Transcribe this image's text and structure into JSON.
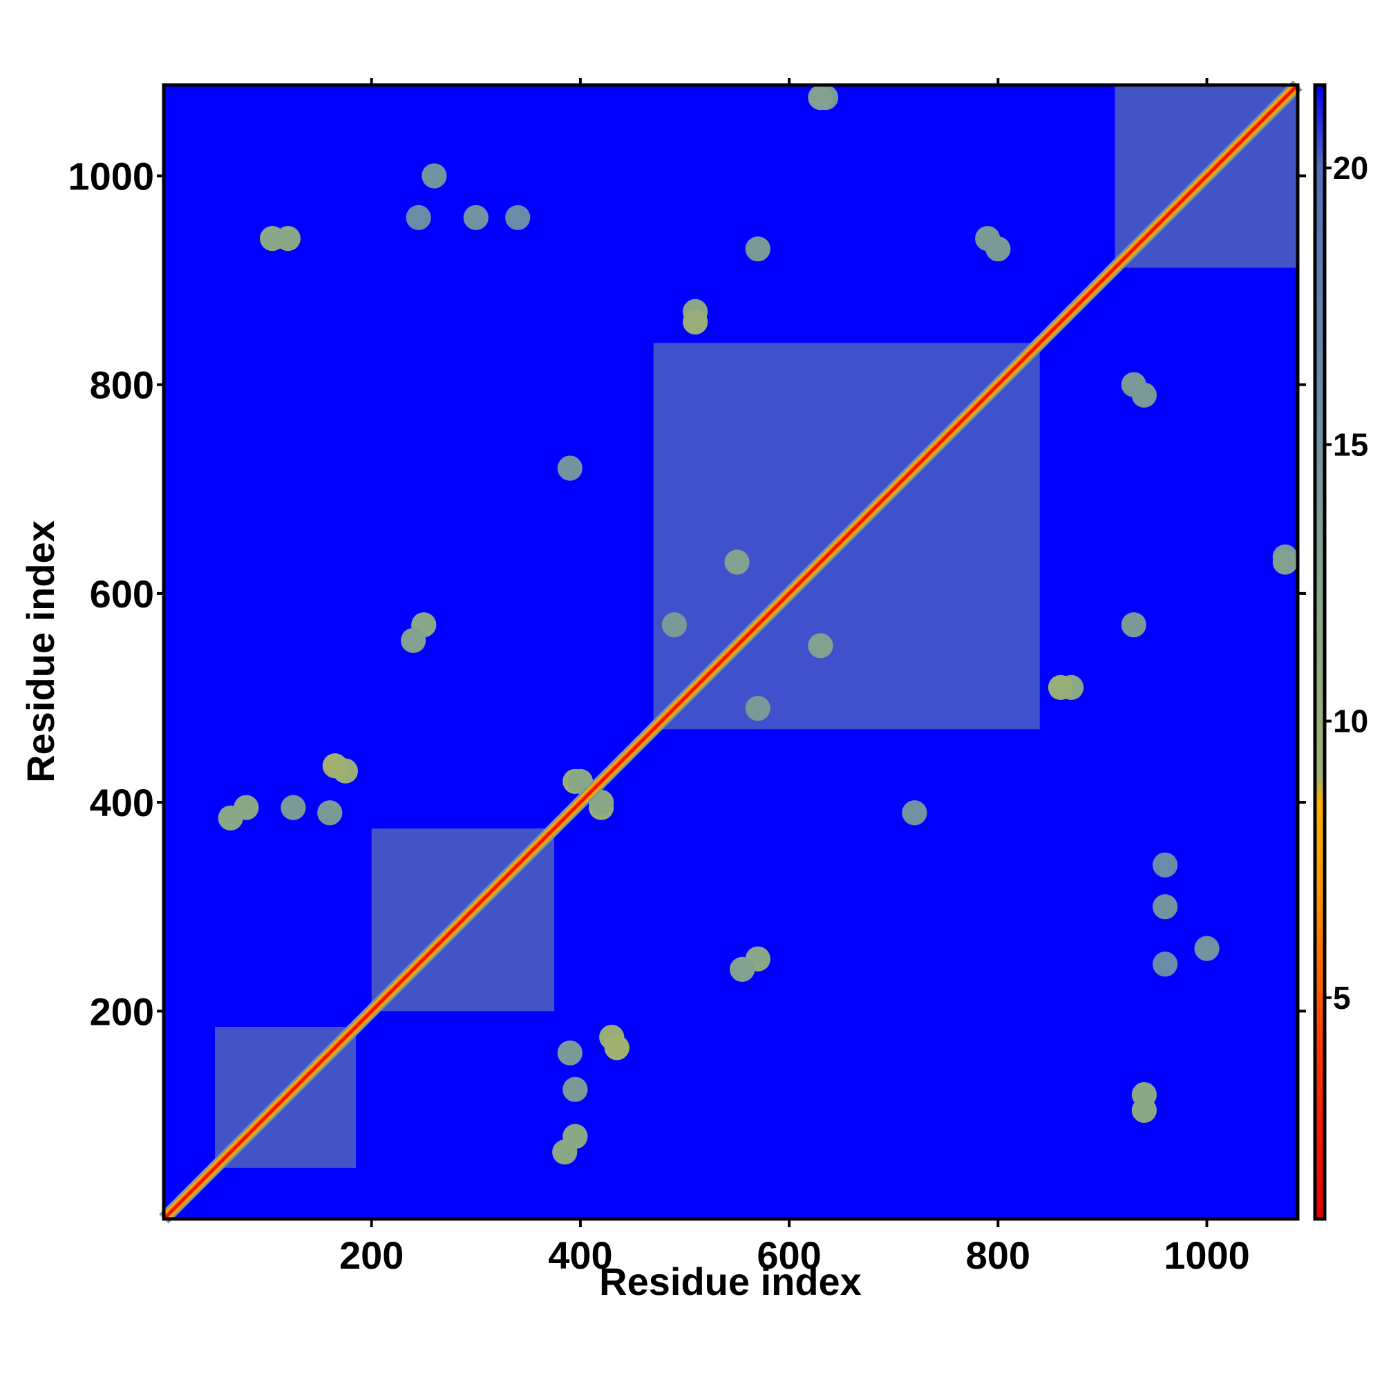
{
  "chart_data": {
    "type": "heatmap",
    "title": "",
    "xlabel": "Residue index",
    "ylabel": "Residue index",
    "xlim": [
      1,
      1087
    ],
    "ylim": [
      1,
      1087
    ],
    "x_ticks": [
      200,
      400,
      600,
      800,
      1000
    ],
    "y_ticks": [
      200,
      400,
      600,
      800,
      1000
    ],
    "x_tick_labels": [
      "200",
      "400",
      "600",
      "800",
      "1000"
    ],
    "y_tick_labels": [
      "200",
      "400",
      "600",
      "800",
      "1000"
    ],
    "grid": false,
    "legend": "none",
    "background_value": 21.5,
    "colorbar": {
      "position": "right",
      "range": [
        1,
        21.5
      ],
      "ticks": [
        5,
        10,
        15,
        20
      ],
      "tick_labels": [
        "5",
        "10",
        "15",
        "20"
      ],
      "color_stops": [
        {
          "value": 1,
          "color": "#e60000"
        },
        {
          "value": 4,
          "color": "#ff3300"
        },
        {
          "value": 7,
          "color": "#ff9900"
        },
        {
          "value": 8.5,
          "color": "#ffb000"
        },
        {
          "value": 9,
          "color": "#a0b070"
        },
        {
          "value": 12,
          "color": "#8aa888"
        },
        {
          "value": 16,
          "color": "#6a8ca8"
        },
        {
          "value": 20,
          "color": "#5070b8"
        },
        {
          "value": 21.5,
          "color": "#0000ff"
        }
      ]
    },
    "domains": [
      {
        "range": [
          50,
          185
        ],
        "value": 14
      },
      {
        "range": [
          200,
          375
        ],
        "value": 14
      },
      {
        "range": [
          470,
          840
        ],
        "value": 15
      },
      {
        "range": [
          912,
          1087
        ],
        "value": 14
      }
    ],
    "off_diagonal_contacts": [
      {
        "x": 120,
        "y": 940,
        "value": 12
      },
      {
        "x": 260,
        "y": 1000,
        "value": 15
      },
      {
        "x": 300,
        "y": 960,
        "value": 15
      },
      {
        "x": 635,
        "y": 1075,
        "value": 14
      },
      {
        "x": 510,
        "y": 870,
        "value": 12
      },
      {
        "x": 570,
        "y": 930,
        "value": 14
      },
      {
        "x": 800,
        "y": 930,
        "value": 14
      },
      {
        "x": 250,
        "y": 570,
        "value": 12
      },
      {
        "x": 390,
        "y": 720,
        "value": 15
      },
      {
        "x": 80,
        "y": 395,
        "value": 12
      },
      {
        "x": 125,
        "y": 395,
        "value": 14
      },
      {
        "x": 175,
        "y": 430,
        "value": 10
      },
      {
        "x": 395,
        "y": 420,
        "value": 10
      },
      {
        "x": 420,
        "y": 400,
        "value": 12
      },
      {
        "x": 390,
        "y": 160,
        "value": 14
      },
      {
        "x": 435,
        "y": 165,
        "value": 9
      },
      {
        "x": 385,
        "y": 65,
        "value": 12
      },
      {
        "x": 555,
        "y": 240,
        "value": 13
      },
      {
        "x": 860,
        "y": 510,
        "value": 10
      },
      {
        "x": 940,
        "y": 105,
        "value": 12
      },
      {
        "x": 940,
        "y": 790,
        "value": 14
      },
      {
        "x": 1075,
        "y": 630,
        "value": 13
      },
      {
        "x": 960,
        "y": 245,
        "value": 16
      },
      {
        "x": 960,
        "y": 340,
        "value": 16
      },
      {
        "x": 550,
        "y": 630,
        "value": 13
      },
      {
        "x": 490,
        "y": 570,
        "value": 14
      }
    ]
  }
}
